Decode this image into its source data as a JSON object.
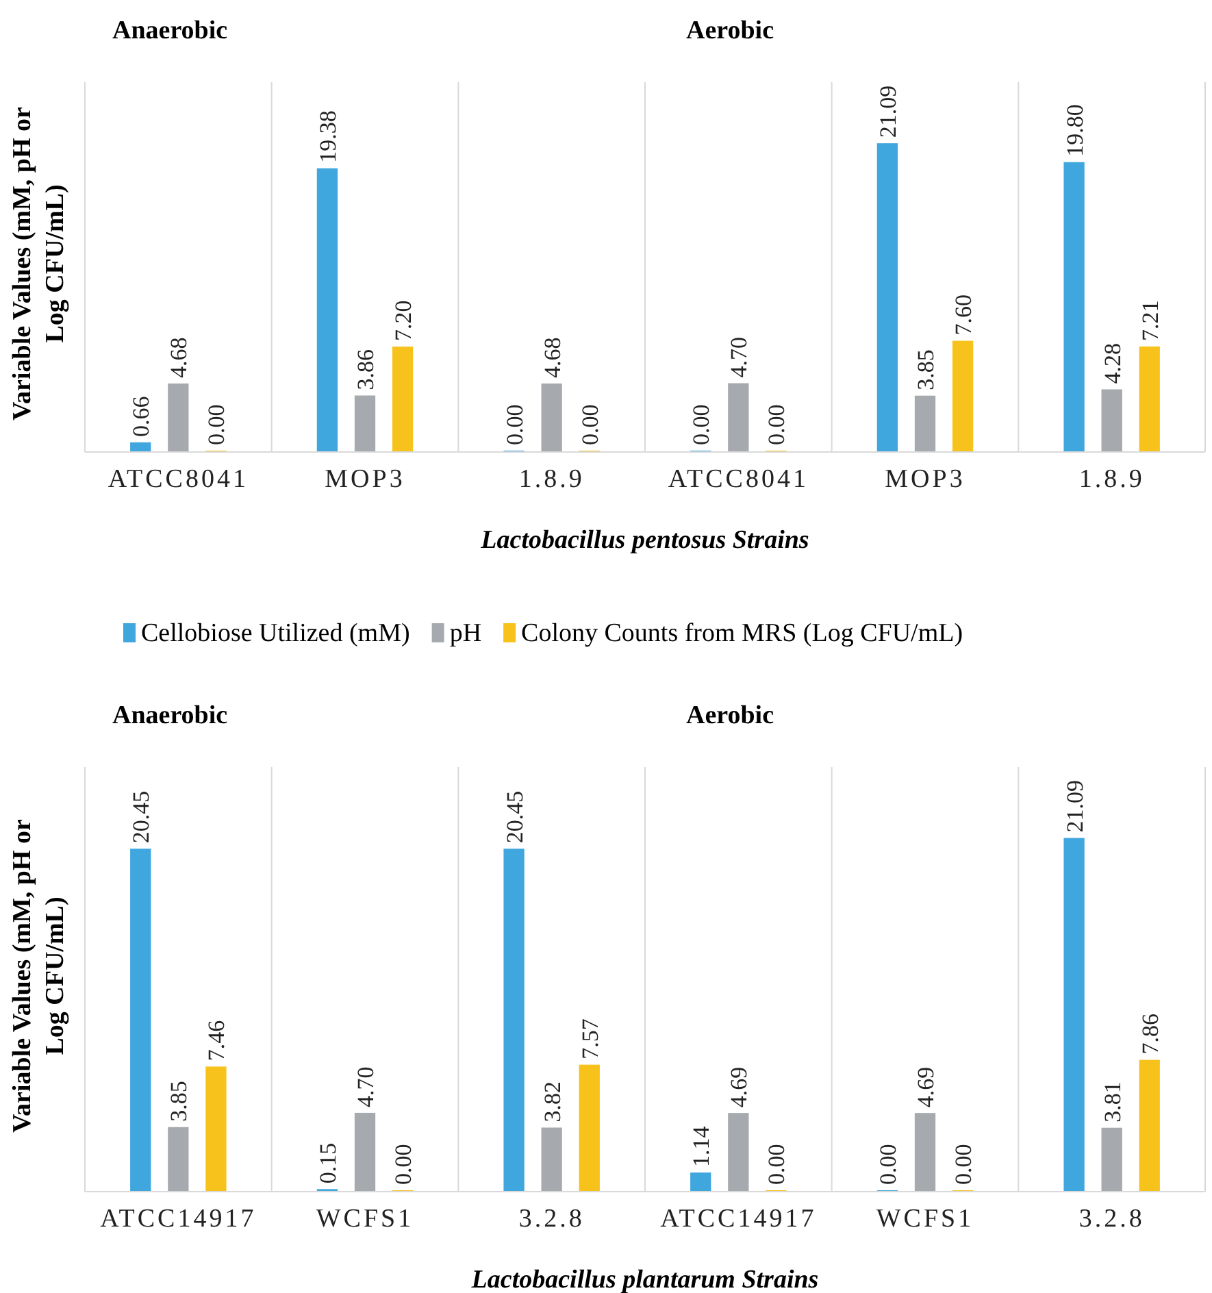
{
  "chart_data": [
    {
      "type": "bar",
      "ylabel": "Variable Values (mM, pH or Log CFU/mL)",
      "xlabel": "Lactobacillus pentosus Strains",
      "categories": [
        "ATCC8041",
        "MOP3",
        "1.8.9",
        "ATCC8041",
        "MOP3",
        "1.8.9"
      ],
      "annotations": [
        "Anaerobic",
        "Aerobic"
      ],
      "legend": "bottom",
      "series": [
        {
          "name": "Cellobiose Utilized (mM)",
          "color": "#3fa6de",
          "values": [
            0.66,
            19.38,
            0,
            0,
            21.09,
            19.8
          ],
          "value_labels": [
            "0.66",
            "19.38",
            "0.00",
            "0.00",
            "21.09",
            "19.80"
          ]
        },
        {
          "name": "pH",
          "color": "#a6a9ae",
          "values": [
            4.68,
            3.86,
            4.68,
            4.7,
            3.85,
            4.28
          ],
          "value_labels": [
            "4.68",
            "3.86",
            "4.68",
            "4.70",
            "3.85",
            "4.28"
          ]
        },
        {
          "name": "Colony Counts from MRS (Log CFU/mL)",
          "color": "#f7c21b",
          "values": [
            0,
            7.2,
            0,
            0,
            7.6,
            7.21
          ],
          "value_labels": [
            "0.00",
            "7.20",
            "0.00",
            "0.00",
            "7.60",
            "7.21"
          ]
        }
      ]
    },
    {
      "type": "bar",
      "ylabel": "Variable Values (mM, pH or Log CFU/mL)",
      "xlabel": "Lactobacillus plantarum Strains",
      "categories": [
        "ATCC14917",
        "WCFS1",
        "3.2.8",
        "ATCC14917",
        "WCFS1",
        "3.2.8"
      ],
      "annotations": [
        "Anaerobic",
        "Aerobic"
      ],
      "series": [
        {
          "color": "#3fa6de",
          "values": [
            20.45,
            0.15,
            20.45,
            1.14,
            0,
            21.09
          ],
          "value_labels": [
            "20.45",
            "0.15",
            "20.45",
            "1.14",
            "0.00",
            "21.09"
          ]
        },
        {
          "color": "#a6a9ae",
          "values": [
            3.85,
            4.7,
            3.82,
            4.69,
            4.69,
            3.81
          ],
          "value_labels": [
            "3.85",
            "4.70",
            "3.82",
            "4.69",
            "4.69",
            "3.81"
          ]
        },
        {
          "color": "#f7c21b",
          "values": [
            7.46,
            0,
            7.57,
            0,
            0,
            7.86
          ],
          "value_labels": [
            "7.46",
            "0.00",
            "7.57",
            "0.00",
            "0.00",
            "7.86"
          ]
        }
      ]
    }
  ]
}
